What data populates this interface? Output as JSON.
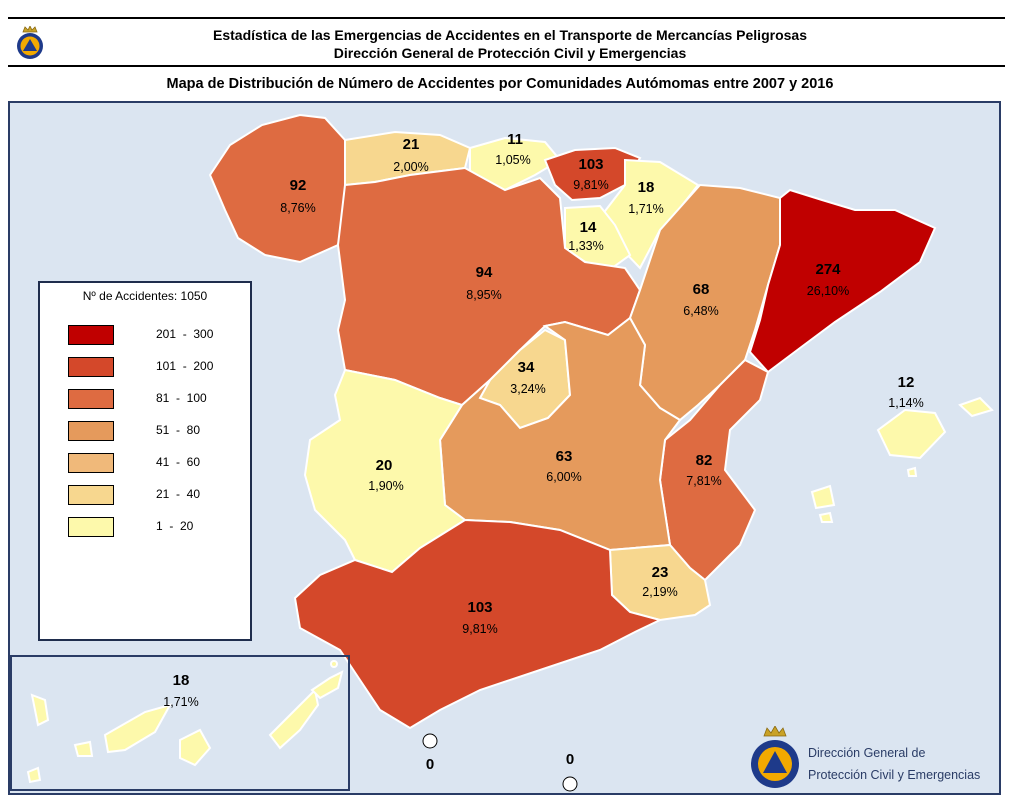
{
  "header": {
    "title_line1": "Estadística de las Emergencias de Accidentes en el Transporte de Mercancías Peligrosas",
    "title_line2": "Dirección General de Protección Civil y Emergencias",
    "map_title": "Mapa de Distribución de Número de Accidentes por Comunidades Autómomas entre 2007 y 2016"
  },
  "legend": {
    "title": "Nº de Accidentes: 1050",
    "ranges": [
      {
        "label": "201  -  300",
        "color": "#c00000"
      },
      {
        "label": "101  -  200",
        "color": "#d4482a"
      },
      {
        "label": "81  -  100",
        "color": "#de6b41"
      },
      {
        "label": "51  -  80",
        "color": "#e59a5c"
      },
      {
        "label": "41  -  60",
        "color": "#f0b97a"
      },
      {
        "label": "21  -  40",
        "color": "#f7d78f"
      },
      {
        "label": "1  -  20",
        "color": "#fdf9ab"
      }
    ]
  },
  "regions": {
    "galicia": {
      "count": "92",
      "pct": "8,76%",
      "color": "#de6b41"
    },
    "asturias": {
      "count": "21",
      "pct": "2,00%",
      "color": "#f7d78f"
    },
    "cantabria": {
      "count": "11",
      "pct": "1,05%",
      "color": "#fdf9ab"
    },
    "pais_vasco": {
      "count": "103",
      "pct": "9,81%",
      "color": "#d4482a"
    },
    "navarra": {
      "count": "18",
      "pct": "1,71%",
      "color": "#fdf9ab"
    },
    "la_rioja": {
      "count": "14",
      "pct": "1,33%",
      "color": "#fdf9ab"
    },
    "castilla_leon": {
      "count": "94",
      "pct": "8,95%",
      "color": "#de6b41"
    },
    "aragon": {
      "count": "68",
      "pct": "6,48%",
      "color": "#e59a5c"
    },
    "cataluna": {
      "count": "274",
      "pct": "26,10%",
      "color": "#c00000"
    },
    "madrid": {
      "count": "34",
      "pct": "3,24%",
      "color": "#f7d78f"
    },
    "castilla_la_mancha": {
      "count": "63",
      "pct": "6,00%",
      "color": "#e59a5c"
    },
    "valencia": {
      "count": "82",
      "pct": "7,81%",
      "color": "#de6b41"
    },
    "baleares": {
      "count": "12",
      "pct": "1,14%",
      "color": "#fdf9ab"
    },
    "extremadura": {
      "count": "20",
      "pct": "1,90%",
      "color": "#fdf9ab"
    },
    "murcia": {
      "count": "23",
      "pct": "2,19%",
      "color": "#f7d78f"
    },
    "andalucia": {
      "count": "103",
      "pct": "9,81%",
      "color": "#d4482a"
    },
    "canarias": {
      "count": "18",
      "pct": "1,71%",
      "color": "#fdf9ab"
    },
    "ceuta": {
      "count": "0"
    },
    "melilla": {
      "count": "0"
    }
  },
  "footer": {
    "org_line1": "Dirección General de",
    "org_line2": "Protección Civil y Emergencias"
  },
  "icons": [
    "civil-protection-emblem-icon"
  ],
  "colors": {
    "sea": "#dbe5f1",
    "frame": "#2a3c66"
  }
}
